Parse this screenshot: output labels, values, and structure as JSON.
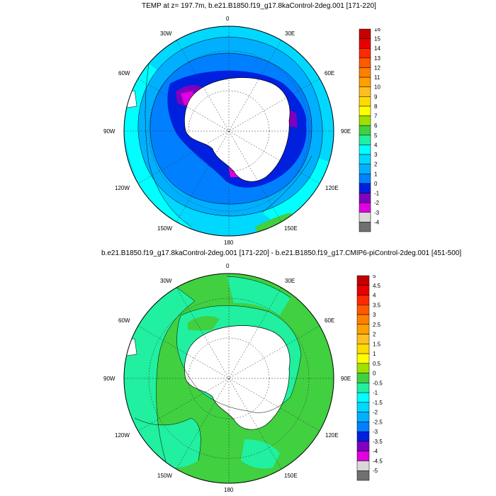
{
  "panel1": {
    "title": "TEMP at z= 197.7m, b.e21.B1850.f19_g17.8kaControl-2deg.001 [171-220]",
    "lon_labels": {
      "n0": "0",
      "e30": "30E",
      "e60": "60E",
      "e90": "90E",
      "e120": "120E",
      "e150": "150E",
      "s180": "180",
      "w150": "150W",
      "w120": "120W",
      "w90": "90W",
      "w60": "60W",
      "w30": "30W"
    },
    "colorbar": {
      "labels": [
        "16",
        "15",
        "14",
        "13",
        "12",
        "11",
        "10",
        "9",
        "8",
        "7",
        "6",
        "5",
        "4",
        "3",
        "2",
        "1",
        "0",
        "-1",
        "-2",
        "-3",
        "-4"
      ],
      "colors": [
        "#c40000",
        "#e80000",
        "#ff2a00",
        "#ff5a00",
        "#ff8000",
        "#ffa000",
        "#ffbf20",
        "#ffdc00",
        "#ffff00",
        "#a0e000",
        "#40d040",
        "#20f0a0",
        "#00ffff",
        "#00d8ff",
        "#00b0ff",
        "#0080ff",
        "#0020e0",
        "#8000c0",
        "#e000e0",
        "#d8d8d8",
        "#707070"
      ]
    }
  },
  "panel2": {
    "title": "b.e21.B1850.f19_g17.8kaControl-2deg.001 [171-220] - b.e21.B1850.f19_g17.CMIP6-piControl-2deg.001 [451-500]",
    "lon_labels": {
      "n0": "0",
      "e30": "30E",
      "e60": "60E",
      "e90": "90E",
      "e120": "120E",
      "e150": "150E",
      "s180": "180",
      "w150": "150W",
      "w120": "120W",
      "w90": "90W",
      "w60": "60W",
      "w30": "30W"
    },
    "colorbar": {
      "labels": [
        "5",
        "4.5",
        "4",
        "3.5",
        "3",
        "2.5",
        "2",
        "1.5",
        "1",
        "0.5",
        "0",
        "-0.5",
        "-1",
        "-1.5",
        "-2",
        "-2.5",
        "-3",
        "-3.5",
        "-4",
        "-4.5",
        "-5"
      ],
      "colors": [
        "#c40000",
        "#e80000",
        "#ff2a00",
        "#ff5a00",
        "#ff8000",
        "#ffa000",
        "#ffbf20",
        "#ffdc00",
        "#ffff00",
        "#a0e000",
        "#40d040",
        "#20f0a0",
        "#00ffff",
        "#00d8ff",
        "#00b0ff",
        "#0080ff",
        "#0020e0",
        "#8000c0",
        "#e000e0",
        "#d8d8d8",
        "#707070"
      ]
    }
  }
}
